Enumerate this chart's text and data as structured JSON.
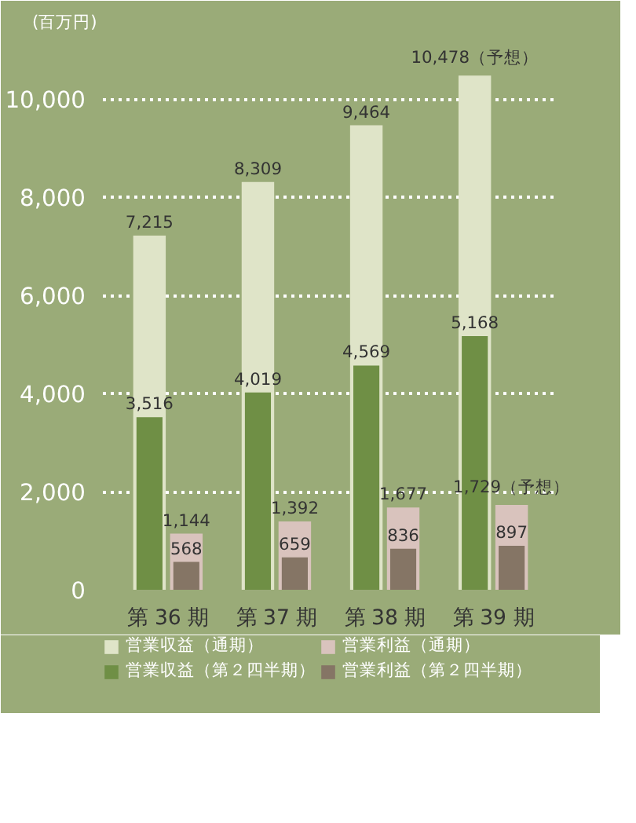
{
  "chart_data": {
    "type": "bar",
    "ylabel": "(百万円)",
    "categories": [
      "第 36 期",
      "第 37 期",
      "第 38 期",
      "第 39 期"
    ],
    "series": [
      {
        "name": "営業収益（通期）",
        "color": "#dfe4c8",
        "values": [
          7215,
          8309,
          9464,
          10478
        ],
        "value_labels": [
          "7,215",
          "8,309",
          "9,464",
          "10,478（予想）"
        ]
      },
      {
        "name": "営業収益（第２四半期）",
        "color": "#6f8f45",
        "values": [
          3516,
          4019,
          4569,
          5168
        ],
        "value_labels": [
          "3,516",
          "4,019",
          "4,569",
          "5,168"
        ]
      },
      {
        "name": "営業利益（通期）",
        "color": "#d9c3bd",
        "values": [
          1144,
          1392,
          1677,
          1729
        ],
        "value_labels": [
          "1,144",
          "1,392",
          "1,677",
          "1,729（予想）"
        ]
      },
      {
        "name": "営業利益（第２四半期）",
        "color": "#857565",
        "values": [
          568,
          659,
          836,
          897
        ],
        "value_labels": [
          "568",
          "659",
          "836",
          "897"
        ]
      }
    ],
    "ylim": [
      0,
      11200
    ],
    "yticks": [
      0,
      {
        "value": 2000,
        "label": "2,000"
      },
      {
        "value": 4000,
        "label": "4,000"
      },
      {
        "value": 6000,
        "label": "6,000"
      },
      {
        "value": 8000,
        "label": "8,000"
      },
      {
        "value": 10000,
        "label": "10,000"
      }
    ],
    "grid": "y",
    "legend": "bottom"
  }
}
